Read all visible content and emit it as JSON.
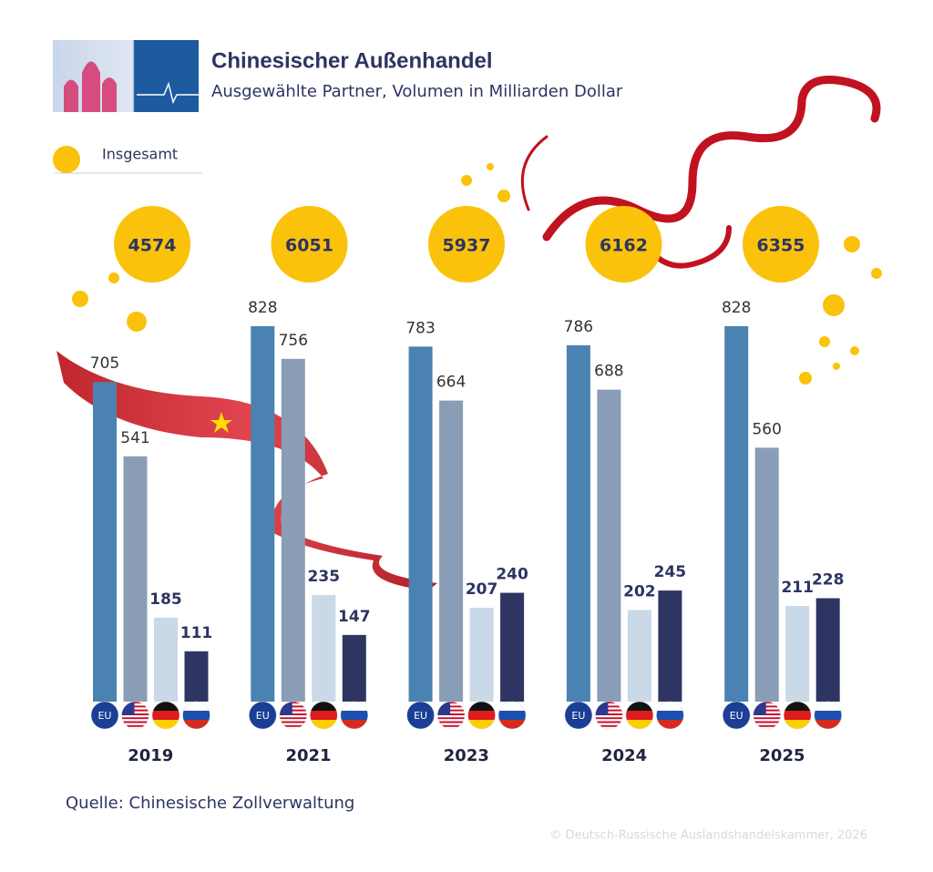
{
  "chart_data": {
    "type": "bar",
    "title": "Chinesischer Außenhandel",
    "subtitle": "Ausgewählte Partner, Volumen in Milliarden Dollar",
    "legend": "Insgesamt",
    "categories": [
      "2019",
      "2021",
      "2023",
      "2024",
      "2025"
    ],
    "totals": [
      4574,
      6051,
      5937,
      6162,
      6355
    ],
    "totals_color": "#fac20a",
    "series": [
      {
        "label": "EU",
        "color": "#4a83b1",
        "values": [
          705,
          828,
          783,
          786,
          828
        ]
      },
      {
        "color": "#8a9db6",
        "values": [
          541,
          756,
          664,
          688,
          560
        ]
      },
      {
        "color": "#c9d9e7",
        "values": [
          185,
          235,
          207,
          202,
          211
        ]
      },
      {
        "color": "#2e3562",
        "values": [
          111,
          147,
          240,
          245,
          228
        ]
      }
    ],
    "source": "Quelle: Chinesische Zollverwaltung",
    "copyright": "© Deutsch-Russische Auslandshandelskammer, 2026"
  }
}
